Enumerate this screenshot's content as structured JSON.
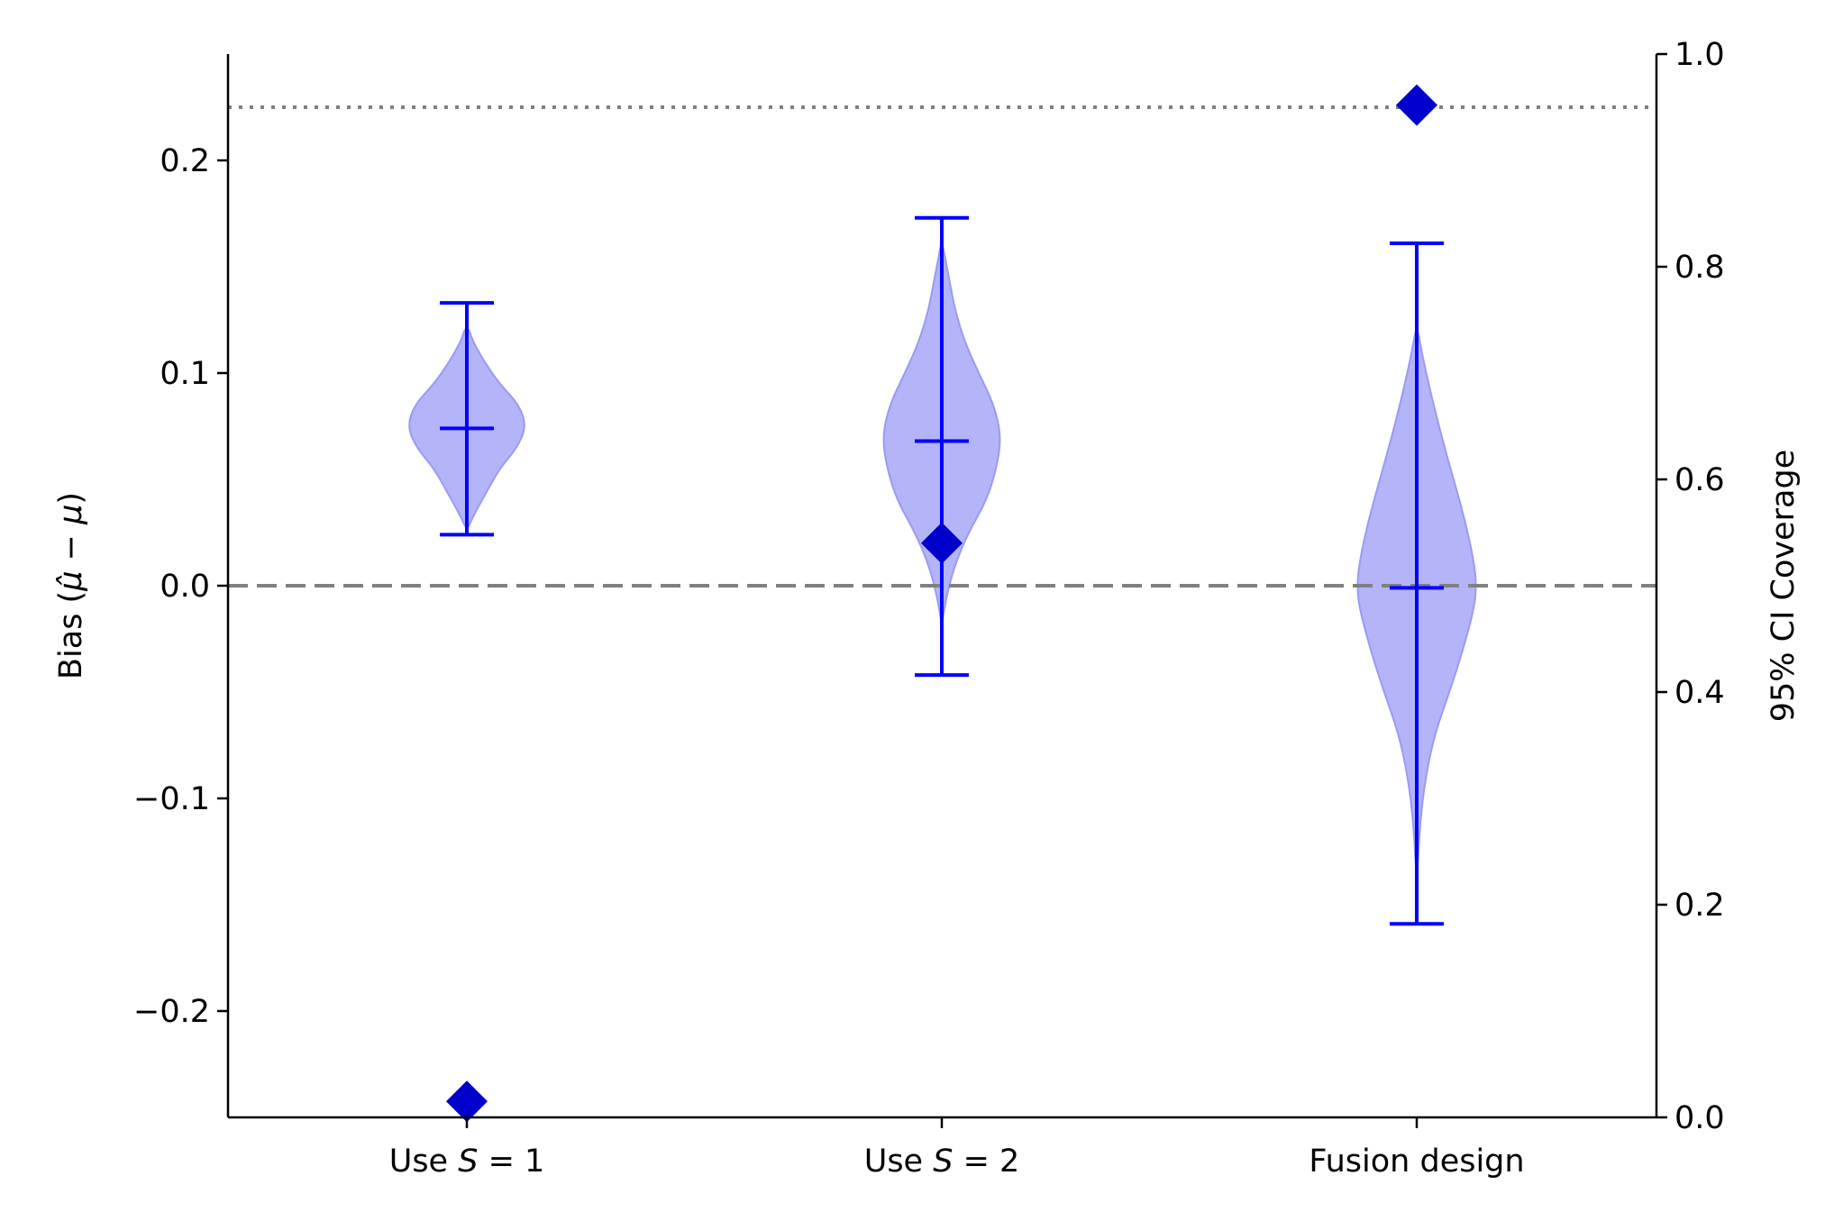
{
  "chart_data": {
    "type": "violin",
    "categories": [
      "Use S = 1",
      "Use S = 2",
      "Fusion design"
    ],
    "category_labels": [
      {
        "pre": "Use ",
        "var": "S",
        "post": " = 1"
      },
      {
        "pre": "Use ",
        "var": "S",
        "post": " = 2"
      },
      {
        "pre": "Fusion design",
        "var": "",
        "post": ""
      }
    ],
    "left_axis": {
      "label_prefix": "Bias (",
      "label_math": "μ̂ − μ",
      "label_suffix": ")",
      "ylim": [
        -0.25,
        0.25
      ],
      "ticks": [
        "−0.2",
        "−0.1",
        "0.0",
        "0.1",
        "0.2"
      ],
      "tick_values": [
        -0.2,
        -0.1,
        0.0,
        0.1,
        0.2
      ]
    },
    "right_axis": {
      "label": "95% CI Coverage",
      "ylim": [
        0.0,
        1.0
      ],
      "ticks": [
        "0.0",
        "0.2",
        "0.4",
        "0.6",
        "0.8",
        "1.0"
      ],
      "tick_values": [
        0.0,
        0.2,
        0.4,
        0.6,
        0.8,
        1.0
      ]
    },
    "bias_distributions": [
      {
        "min": 0.024,
        "max": 0.133,
        "mean": 0.074,
        "profile": [
          [
            0.028,
            0.03
          ],
          [
            0.035,
            0.15
          ],
          [
            0.045,
            0.35
          ],
          [
            0.055,
            0.55
          ],
          [
            0.065,
            0.85
          ],
          [
            0.075,
            1.0
          ],
          [
            0.085,
            0.88
          ],
          [
            0.095,
            0.55
          ],
          [
            0.105,
            0.3
          ],
          [
            0.115,
            0.1
          ],
          [
            0.121,
            0.03
          ]
        ]
      },
      {
        "min": -0.042,
        "max": 0.173,
        "mean": 0.068,
        "profile": [
          [
            -0.015,
            0.02
          ],
          [
            -0.005,
            0.08
          ],
          [
            0.01,
            0.22
          ],
          [
            0.025,
            0.45
          ],
          [
            0.04,
            0.75
          ],
          [
            0.055,
            0.92
          ],
          [
            0.07,
            1.0
          ],
          [
            0.085,
            0.88
          ],
          [
            0.1,
            0.62
          ],
          [
            0.115,
            0.38
          ],
          [
            0.13,
            0.22
          ],
          [
            0.145,
            0.12
          ],
          [
            0.155,
            0.05
          ],
          [
            0.16,
            0.02
          ]
        ]
      },
      {
        "min": -0.159,
        "max": 0.161,
        "mean": -0.001,
        "profile": [
          [
            -0.13,
            0.02
          ],
          [
            -0.11,
            0.06
          ],
          [
            -0.09,
            0.15
          ],
          [
            -0.07,
            0.3
          ],
          [
            -0.05,
            0.55
          ],
          [
            -0.03,
            0.78
          ],
          [
            -0.01,
            0.97
          ],
          [
            0.0,
            1.0
          ],
          [
            0.01,
            0.97
          ],
          [
            0.03,
            0.82
          ],
          [
            0.05,
            0.62
          ],
          [
            0.07,
            0.42
          ],
          [
            0.09,
            0.24
          ],
          [
            0.105,
            0.12
          ],
          [
            0.115,
            0.05
          ],
          [
            0.12,
            0.02
          ]
        ]
      }
    ],
    "coverage_values": [
      0.015,
      0.54,
      0.952
    ],
    "reference_lines": {
      "bias_zero": 0.0,
      "coverage_nominal": 0.95
    },
    "colors": {
      "violin_fill": "#b0b0f8",
      "violin_edge": "#9a9af5",
      "whisker": "#0000ff",
      "marker": "#0000cc",
      "reference": "#808080"
    }
  }
}
